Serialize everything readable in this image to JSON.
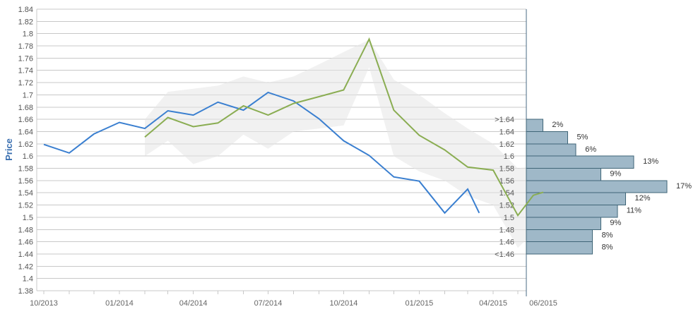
{
  "chart_data": {
    "type": "line",
    "ylabel": "Price",
    "ylim": [
      1.38,
      1.84
    ],
    "yticks": [
      "1.84",
      "1.82",
      "1.8",
      "1.78",
      "1.76",
      "1.74",
      "1.72",
      "1.7",
      "1.68",
      "1.66",
      "1.64",
      "1.62",
      "1.6",
      "1.58",
      "1.56",
      "1.54",
      "1.52",
      "1.5",
      "1.48",
      "1.46",
      "1.44",
      "1.42",
      "1.4",
      "1.38"
    ],
    "xticks": [
      {
        "label": "10/2013",
        "date": "2013-10-01"
      },
      {
        "label": "01/2014",
        "date": "2014-01-01"
      },
      {
        "label": "04/2014",
        "date": "2014-04-01"
      },
      {
        "label": "07/2014",
        "date": "2014-07-01"
      },
      {
        "label": "10/2014",
        "date": "2014-10-01"
      },
      {
        "label": "01/2015",
        "date": "2015-01-01"
      },
      {
        "label": "04/2015",
        "date": "2015-04-01"
      },
      {
        "label": "06/2015",
        "date": "2015-06-01"
      }
    ],
    "grid": true,
    "colors": {
      "actual": "#3a7fd0",
      "forecast": "#8aad52",
      "band": "#e6e6e6",
      "histogram": "#9fb8c8",
      "histogram_edge": "#3f6577",
      "grid": "#c8c8c8",
      "axis": "#4a6b86"
    },
    "series": [
      {
        "key": "actual",
        "points": [
          [
            "2013-10-01",
            1.619
          ],
          [
            "2013-11-01",
            1.605
          ],
          [
            "2013-12-01",
            1.636
          ],
          [
            "2014-01-01",
            1.655
          ],
          [
            "2014-02-01",
            1.645
          ],
          [
            "2014-03-01",
            1.674
          ],
          [
            "2014-04-01",
            1.667
          ],
          [
            "2014-05-01",
            1.688
          ],
          [
            "2014-06-01",
            1.675
          ],
          [
            "2014-07-01",
            1.704
          ],
          [
            "2014-08-01",
            1.69
          ],
          [
            "2014-09-01",
            1.661
          ],
          [
            "2014-10-01",
            1.625
          ],
          [
            "2014-11-01",
            1.601
          ],
          [
            "2014-12-01",
            1.566
          ],
          [
            "2015-01-01",
            1.559
          ],
          [
            "2015-02-01",
            1.507
          ],
          [
            "2015-03-01",
            1.546
          ],
          [
            "2015-03-15",
            1.507
          ]
        ]
      },
      {
        "key": "forecast",
        "points": [
          [
            "2014-02-01",
            1.631
          ],
          [
            "2014-03-01",
            1.663
          ],
          [
            "2014-04-01",
            1.648
          ],
          [
            "2014-05-01",
            1.654
          ],
          [
            "2014-06-01",
            1.682
          ],
          [
            "2014-07-01",
            1.667
          ],
          [
            "2014-08-01",
            1.686
          ],
          [
            "2014-09-01",
            1.697
          ],
          [
            "2014-10-01",
            1.708
          ],
          [
            "2014-11-01",
            1.791
          ],
          [
            "2014-12-01",
            1.675
          ],
          [
            "2015-01-01",
            1.634
          ],
          [
            "2015-02-01",
            1.61
          ],
          [
            "2015-03-01",
            1.582
          ],
          [
            "2015-04-01",
            1.577
          ],
          [
            "2015-05-01",
            1.503
          ],
          [
            "2015-05-20",
            1.536
          ],
          [
            "2015-06-01",
            1.541
          ]
        ]
      }
    ],
    "band": {
      "upper": [
        [
          "2014-02-01",
          1.66
        ],
        [
          "2014-03-01",
          1.705
        ],
        [
          "2014-04-01",
          1.71
        ],
        [
          "2014-05-01",
          1.715
        ],
        [
          "2014-06-01",
          1.73
        ],
        [
          "2014-07-01",
          1.72
        ],
        [
          "2014-08-01",
          1.73
        ],
        [
          "2014-09-01",
          1.75
        ],
        [
          "2014-10-01",
          1.77
        ],
        [
          "2014-11-01",
          1.79
        ],
        [
          "2014-12-01",
          1.725
        ],
        [
          "2015-01-01",
          1.7
        ],
        [
          "2015-02-01",
          1.67
        ],
        [
          "2015-03-01",
          1.645
        ],
        [
          "2015-04-01",
          1.62
        ],
        [
          "2015-05-01",
          1.58
        ],
        [
          "2015-06-01",
          1.585
        ]
      ],
      "lower": [
        [
          "2014-02-01",
          1.6
        ],
        [
          "2014-03-01",
          1.625
        ],
        [
          "2014-04-01",
          1.587
        ],
        [
          "2014-05-01",
          1.6
        ],
        [
          "2014-06-01",
          1.635
        ],
        [
          "2014-07-01",
          1.612
        ],
        [
          "2014-08-01",
          1.64
        ],
        [
          "2014-09-01",
          1.645
        ],
        [
          "2014-10-01",
          1.65
        ],
        [
          "2014-11-01",
          1.745
        ],
        [
          "2014-12-01",
          1.6
        ],
        [
          "2015-01-01",
          1.575
        ],
        [
          "2015-02-01",
          1.56
        ],
        [
          "2015-03-01",
          1.535
        ],
        [
          "2015-04-01",
          1.52
        ],
        [
          "2015-05-01",
          1.45
        ],
        [
          "2015-06-01",
          1.49
        ]
      ]
    },
    "histogram": [
      {
        "label": ">1.64",
        "low": 1.64,
        "high": 1.66,
        "percent": 2,
        "value_label": "2%"
      },
      {
        "label": "1.64",
        "low": 1.62,
        "high": 1.64,
        "percent": 5,
        "value_label": "5%"
      },
      {
        "label": "1.62",
        "low": 1.6,
        "high": 1.62,
        "percent": 6,
        "value_label": "6%"
      },
      {
        "label": "1.6",
        "low": 1.58,
        "high": 1.6,
        "percent": 13,
        "value_label": "13%"
      },
      {
        "label": "1.58",
        "low": 1.56,
        "high": 1.58,
        "percent": 9,
        "value_label": "9%"
      },
      {
        "label": "1.56",
        "low": 1.54,
        "high": 1.56,
        "percent": 17,
        "value_label": "17%"
      },
      {
        "label": "1.54",
        "low": 1.52,
        "high": 1.54,
        "percent": 12,
        "value_label": "12%"
      },
      {
        "label": "1.52",
        "low": 1.5,
        "high": 1.52,
        "percent": 11,
        "value_label": "11%"
      },
      {
        "label": "1.5",
        "low": 1.48,
        "high": 1.5,
        "percent": 9,
        "value_label": "9%"
      },
      {
        "label": "1.48",
        "low": 1.46,
        "high": 1.48,
        "percent": 8,
        "value_label": "8%"
      },
      {
        "label": "1.46",
        "low": 1.44,
        "high": 1.46,
        "percent": 8,
        "value_label": "8%"
      }
    ],
    "histogram_footer_label": "<1.46"
  }
}
